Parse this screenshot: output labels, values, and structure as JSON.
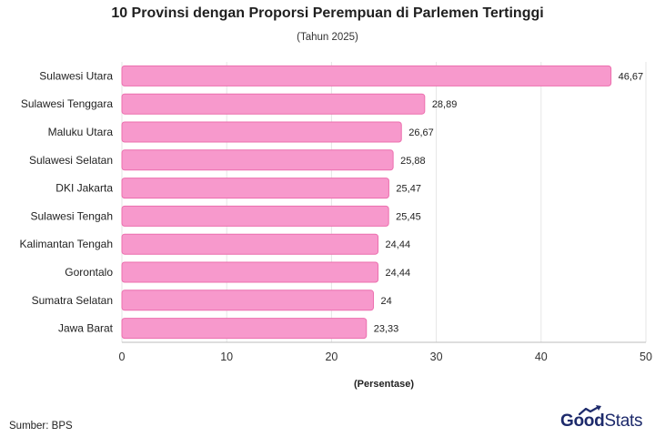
{
  "header": {
    "title": "10 Provinsi dengan Proporsi Perempuan di Parlemen Tertinggi",
    "subtitle": "(Tahun 2025)"
  },
  "footer": {
    "source": "Sumber: BPS",
    "brand_bold": "Good",
    "brand_light": "Stats"
  },
  "colors": {
    "bar_fill": "#f799cc",
    "bar_stroke": "#ec6fae",
    "grid": "#e6e6e6",
    "brand": "#1d2a6b"
  },
  "chart_data": {
    "type": "bar",
    "orientation": "horizontal",
    "title": "10 Provinsi dengan Proporsi Perempuan di Parlemen Tertinggi",
    "subtitle": "(Tahun 2025)",
    "xlabel": "(Persentase)",
    "ylabel": "",
    "xlim": [
      0,
      50
    ],
    "xticks": [
      "0",
      "10",
      "20",
      "30",
      "40",
      "50"
    ],
    "grid": true,
    "categories": [
      "Sulawesi Utara",
      "Sulawesi Tenggara",
      "Maluku Utara",
      "Sulawesi Selatan",
      "DKI Jakarta",
      "Sulawesi Tengah",
      "Kalimantan Tengah",
      "Gorontalo",
      "Sumatra Selatan",
      "Jawa Barat"
    ],
    "values": [
      46.67,
      28.89,
      26.67,
      25.88,
      25.47,
      25.45,
      24.44,
      24.44,
      24,
      23.33
    ],
    "value_labels": [
      "46,67",
      "28,89",
      "26,67",
      "25,88",
      "25,47",
      "25,45",
      "24,44",
      "24,44",
      "24",
      "23,33"
    ]
  }
}
